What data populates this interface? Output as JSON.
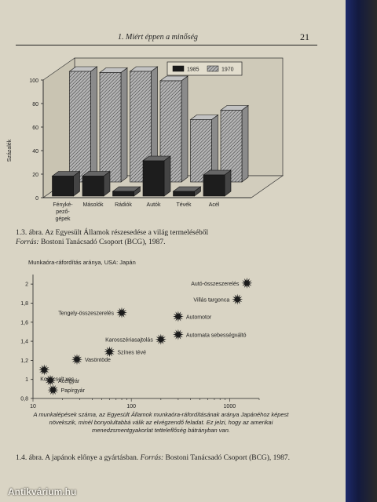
{
  "header": {
    "running_title": "1. Miért éppen a minőség",
    "page_number": "21"
  },
  "figure1": {
    "caption_number": "1.3. ábra.",
    "caption_text": "Az Egyesült Államok részesedése a világ termeléséből",
    "source_label": "Forrás:",
    "source_text": "Bostoni Tanácsadó Csoport (BCG), 1987.",
    "chart_data": {
      "type": "bar",
      "ylabel": "Százalék",
      "ylim": [
        0,
        100
      ],
      "yticks": [
        0,
        20,
        40,
        60,
        80,
        100
      ],
      "categories": [
        "Fényképezőgépek",
        "Másolók",
        "Rádiók",
        "Autók",
        "Tévék",
        "Acél"
      ],
      "category_lines": [
        [
          "Fényké-",
          "pező-",
          "gépek"
        ],
        [
          "Másolók"
        ],
        [
          "Rádiók"
        ],
        [
          "Autók"
        ],
        [
          "Tévék"
        ],
        [
          "Acél"
        ]
      ],
      "series": [
        {
          "name": "1985",
          "values": [
            17,
            17,
            4,
            30,
            4,
            18
          ],
          "color": "#1a1a1a"
        },
        {
          "name": "1970",
          "values": [
            94,
            93,
            94,
            86,
            53,
            61
          ],
          "color": "#9a9a9a"
        }
      ],
      "legend_position": "top-right"
    }
  },
  "figure2": {
    "caption_number": "1.4. ábra.",
    "caption_text": "A japánok előnye a gyártásban.",
    "source_label": "Forrás:",
    "source_text": "Bostoni Tanácsadó Csoport (BCG), 1987.",
    "note": "A munkalépések száma, az Egyesült Államok munkaóra-ráfordításának aránya Japánéhoz képest növekszik, minél bonyolultabbá válik az elvégzendő feladat. Ez jelzi, hogy az amerikai menedzsmentgyakorlat tetteleflőség bátrányban van.",
    "chart_data": {
      "type": "scatter",
      "title": "Munkaóra-ráfordítás aránya, USA: Japán",
      "x_scale": "log",
      "xlim": [
        10,
        2000
      ],
      "xticks": [
        10,
        100,
        1000
      ],
      "ylim": [
        0.8,
        2.1
      ],
      "yticks": [
        0.8,
        1,
        1.2,
        1.4,
        1.6,
        1.8,
        2
      ],
      "points": [
        {
          "label": "Autó-összeszerelés",
          "x": 1500,
          "y": 2.01,
          "label_side": "left"
        },
        {
          "label": "Villás targonca",
          "x": 1200,
          "y": 1.84,
          "label_side": "left"
        },
        {
          "label": "Automotor",
          "x": 300,
          "y": 1.66,
          "label_side": "right"
        },
        {
          "label": "Automata sebességváltó",
          "x": 300,
          "y": 1.47,
          "label_side": "right"
        },
        {
          "label": "Karosszériasajtolás",
          "x": 200,
          "y": 1.42,
          "label_side": "left"
        },
        {
          "label": "Tengely-összeszerelés",
          "x": 80,
          "y": 1.7,
          "label_side": "left"
        },
        {
          "label": "Színes tévé",
          "x": 60,
          "y": 1.29,
          "label_side": "right"
        },
        {
          "label": "Vasöntöde",
          "x": 28,
          "y": 1.21,
          "label_side": "right"
        },
        {
          "label": "Kovácsolt vas",
          "x": 13,
          "y": 1.1,
          "label_side": "below"
        },
        {
          "label": "Acélgyár",
          "x": 15,
          "y": 0.99,
          "label_side": "right"
        },
        {
          "label": "Papírgyár",
          "x": 16,
          "y": 0.89,
          "label_side": "right"
        }
      ]
    }
  },
  "watermark": "Antikvárium.hu"
}
